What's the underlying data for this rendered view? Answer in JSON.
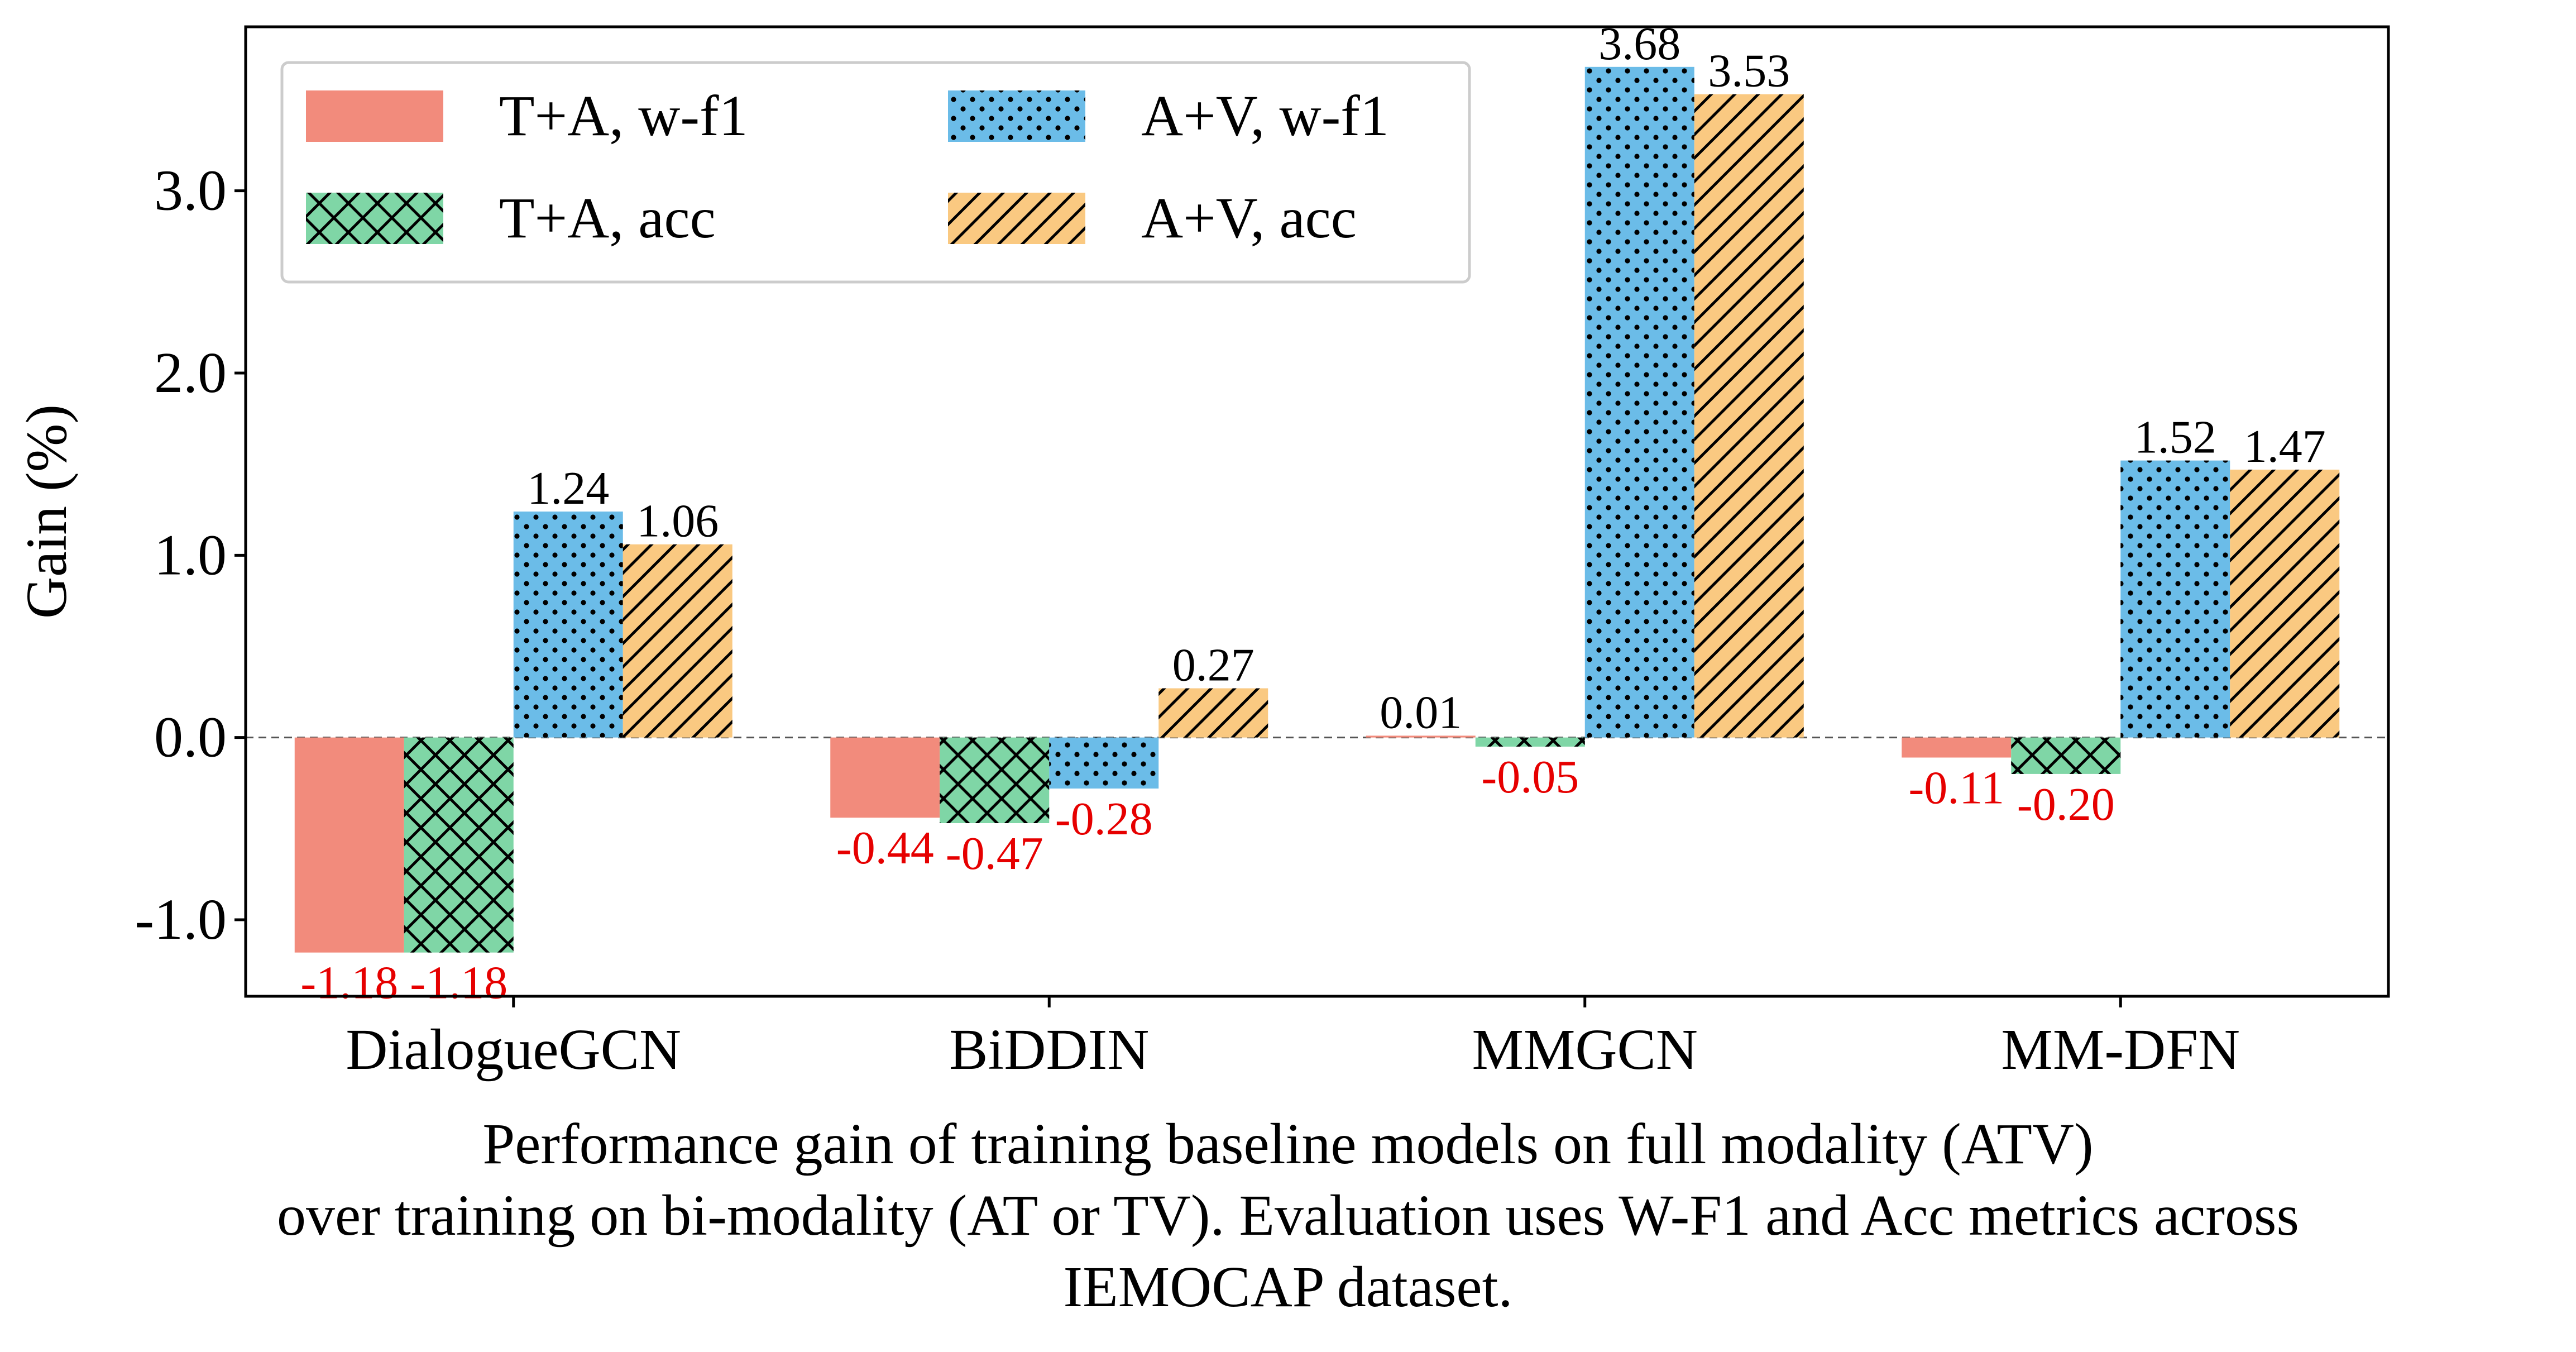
{
  "chart_data": {
    "type": "bar",
    "categories": [
      "DialogueGCN",
      "BiDDIN",
      "MMGCN",
      "MM-DFN"
    ],
    "series": [
      {
        "name": "T+A, w-f1",
        "values": [
          -1.18,
          -0.44,
          0.01,
          -0.11
        ],
        "labels": [
          "-1.18",
          "-0.44",
          "0.01",
          "-0.11"
        ],
        "color": "#F28B7C",
        "pattern": "none"
      },
      {
        "name": "T+A, acc",
        "values": [
          -1.18,
          -0.47,
          -0.05,
          -0.2
        ],
        "labels": [
          "-1.18",
          "-0.47",
          "-0.05",
          "-0.20"
        ],
        "color": "#7FD6A6",
        "pattern": "crosshatch"
      },
      {
        "name": "A+V, w-f1",
        "values": [
          1.24,
          -0.28,
          3.68,
          1.52
        ],
        "labels": [
          "1.24",
          "-0.28",
          "3.68",
          "1.52"
        ],
        "color": "#6BBCE8",
        "pattern": "dots"
      },
      {
        "name": "A+V, acc",
        "values": [
          1.06,
          0.27,
          3.53,
          1.47
        ],
        "labels": [
          "1.06",
          "0.27",
          "3.53",
          "1.47"
        ],
        "color": "#FAC981",
        "pattern": "diagonal"
      }
    ],
    "xlabel": "",
    "ylabel": "Gain (%)",
    "ylim": [
      -1.42,
      3.9
    ],
    "yticks": [
      -1.0,
      0.0,
      1.0,
      2.0,
      3.0
    ],
    "ytick_labels": [
      "-1.0",
      "0.0",
      "1.0",
      "2.0",
      "3.0"
    ],
    "zero_line": "dashed",
    "positive_label_color": "#000000",
    "negative_label_color": "#E60000",
    "legend": {
      "placement": "top-left",
      "columns": 2
    },
    "grid": false
  },
  "caption": {
    "line1": "Performance gain of training baseline models on full modality (ATV)",
    "line2": "over training on bi-modality (AT or TV). Evaluation uses W-F1 and Acc metrics across",
    "line3": "IEMOCAP dataset."
  }
}
